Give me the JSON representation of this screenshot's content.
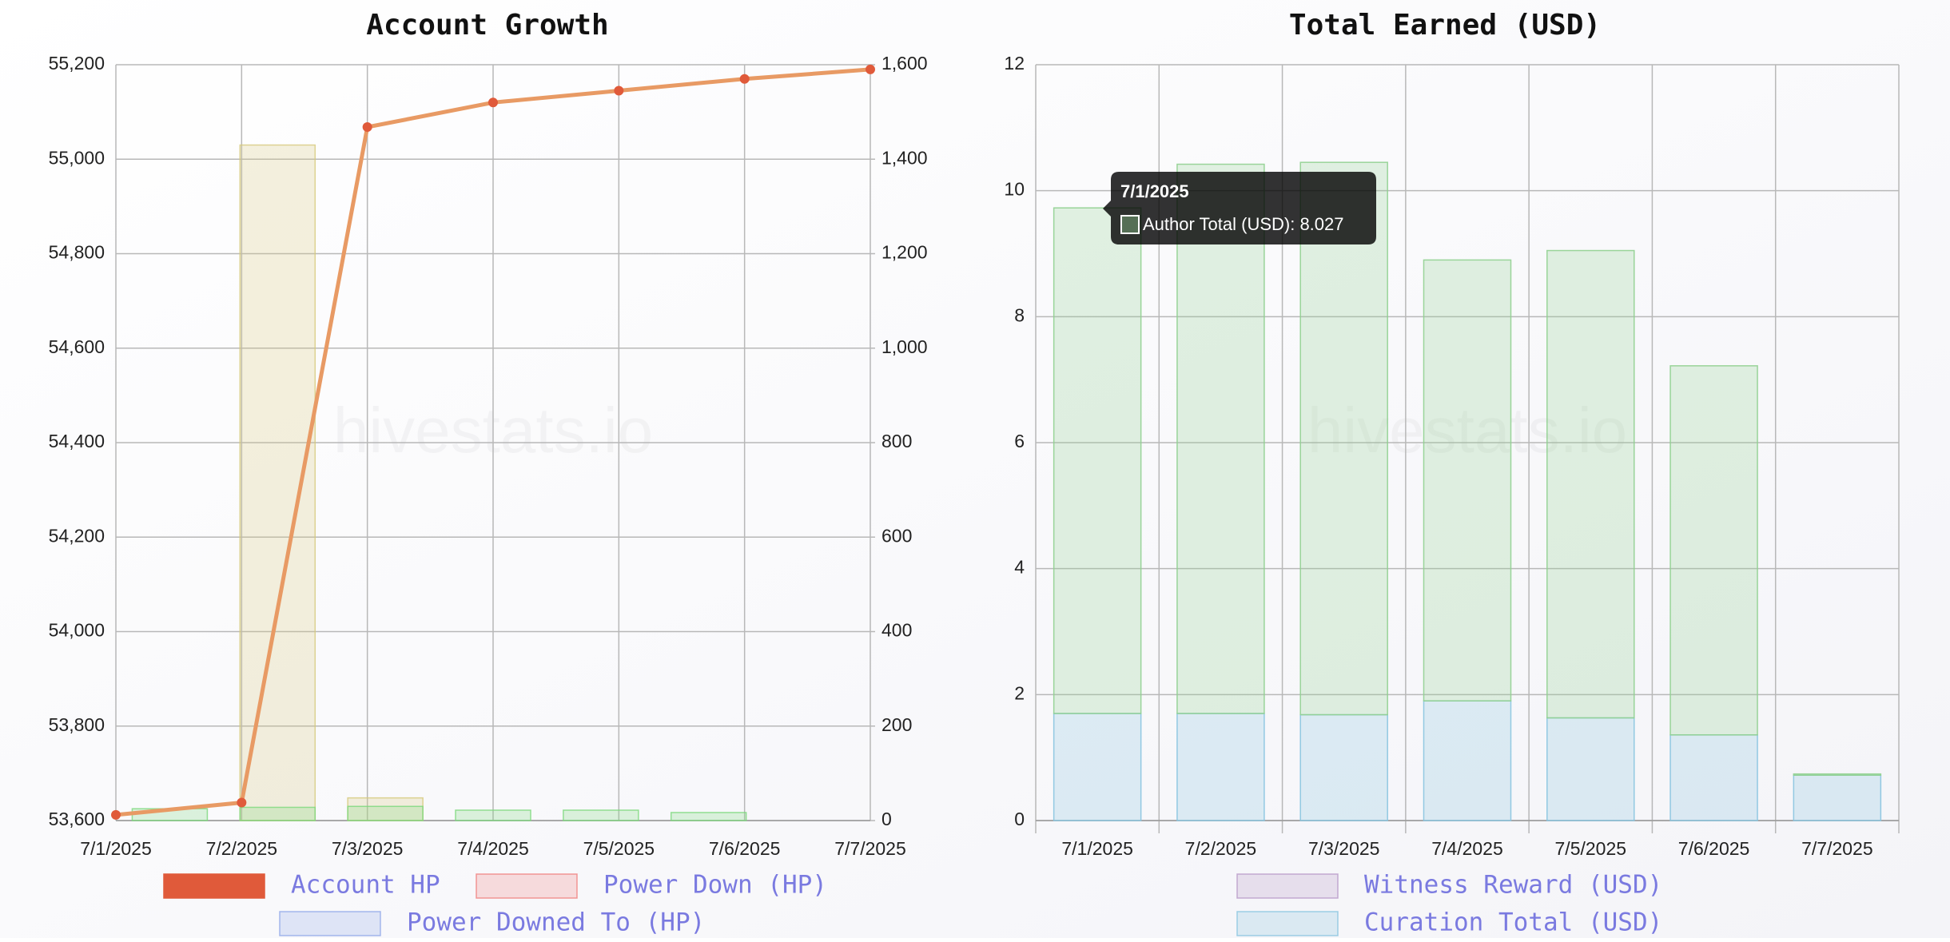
{
  "chart_data": [
    {
      "type": "combo",
      "title": "Account Growth",
      "watermark": "hivestats.io",
      "categories": [
        "7/1/2025",
        "7/2/2025",
        "7/3/2025",
        "7/4/2025",
        "7/5/2025",
        "7/6/2025",
        "7/7/2025"
      ],
      "ylim": [
        53600,
        55200
      ],
      "yticks": [
        {
          "value": 53600,
          "label": "53,600"
        },
        {
          "value": 53800,
          "label": "53,800"
        },
        {
          "value": 54000,
          "label": "54,000"
        },
        {
          "value": 54200,
          "label": "54,200"
        },
        {
          "value": 54400,
          "label": "54,400"
        },
        {
          "value": 54600,
          "label": "54,600"
        },
        {
          "value": 54800,
          "label": "54,800"
        },
        {
          "value": 55000,
          "label": "55,000"
        },
        {
          "value": 55200,
          "label": "55,200"
        }
      ],
      "y2lim": [
        0,
        1600
      ],
      "y2ticks": [
        0,
        200,
        400,
        600,
        800,
        {
          "value": 1000,
          "label": "1,000"
        },
        {
          "value": 1200,
          "label": "1,200"
        },
        {
          "value": 1400,
          "label": "1,400"
        },
        {
          "value": 1600,
          "label": "1,600"
        }
      ],
      "grid": true,
      "series": [
        {
          "name": "Account HP",
          "type": "line",
          "color": "#e05a3a",
          "line_color": "#e89a64",
          "values": [
            53612,
            53638,
            55068,
            55120,
            55145,
            55170,
            55190
          ]
        },
        {
          "name": "Power Down (HP)",
          "type": "bar",
          "axis": "y2",
          "color": "#f08080",
          "values": [
            0,
            0,
            0,
            0,
            0,
            0,
            0
          ]
        },
        {
          "name": "Power Downed To (HP)",
          "type": "bar",
          "axis": "y2",
          "color": "#90a8e8",
          "values": [
            0,
            0,
            0,
            0,
            0,
            0,
            0
          ]
        },
        {
          "type": "bar",
          "axis": "y2",
          "color": "#d6c97a",
          "values": [
            0,
            1430,
            48,
            0,
            0,
            0,
            0
          ]
        },
        {
          "type": "bar",
          "axis": "y2",
          "color": "#7cd87c",
          "values": [
            25,
            28,
            30,
            22,
            22,
            17,
            0
          ]
        }
      ]
    },
    {
      "type": "stacked-bar",
      "title": "Total Earned (USD)",
      "watermark": "hivestats.io",
      "categories": [
        "7/1/2025",
        "7/2/2025",
        "7/3/2025",
        "7/4/2025",
        "7/5/2025",
        "7/6/2025",
        "7/7/2025"
      ],
      "ylim": [
        0,
        12
      ],
      "yticks": [
        0,
        2,
        4,
        6,
        8,
        10,
        12
      ],
      "grid": true,
      "series": [
        {
          "name": "Witness Reward (USD)",
          "color": "#b898c8",
          "values": [
            0,
            0,
            0,
            0,
            0,
            0,
            0
          ]
        },
        {
          "name": "Curation Total (USD)",
          "color": "#88c4e0",
          "values": [
            1.7,
            1.7,
            1.68,
            1.9,
            1.63,
            1.36,
            0.72
          ]
        },
        {
          "color": "#90d090",
          "values": [
            8.027,
            8.72,
            8.77,
            7.0,
            7.42,
            5.86,
            0.02
          ]
        }
      ],
      "tooltip": {
        "title": "7/1/2025",
        "label": "Author Total (USD): 8.027"
      }
    }
  ]
}
